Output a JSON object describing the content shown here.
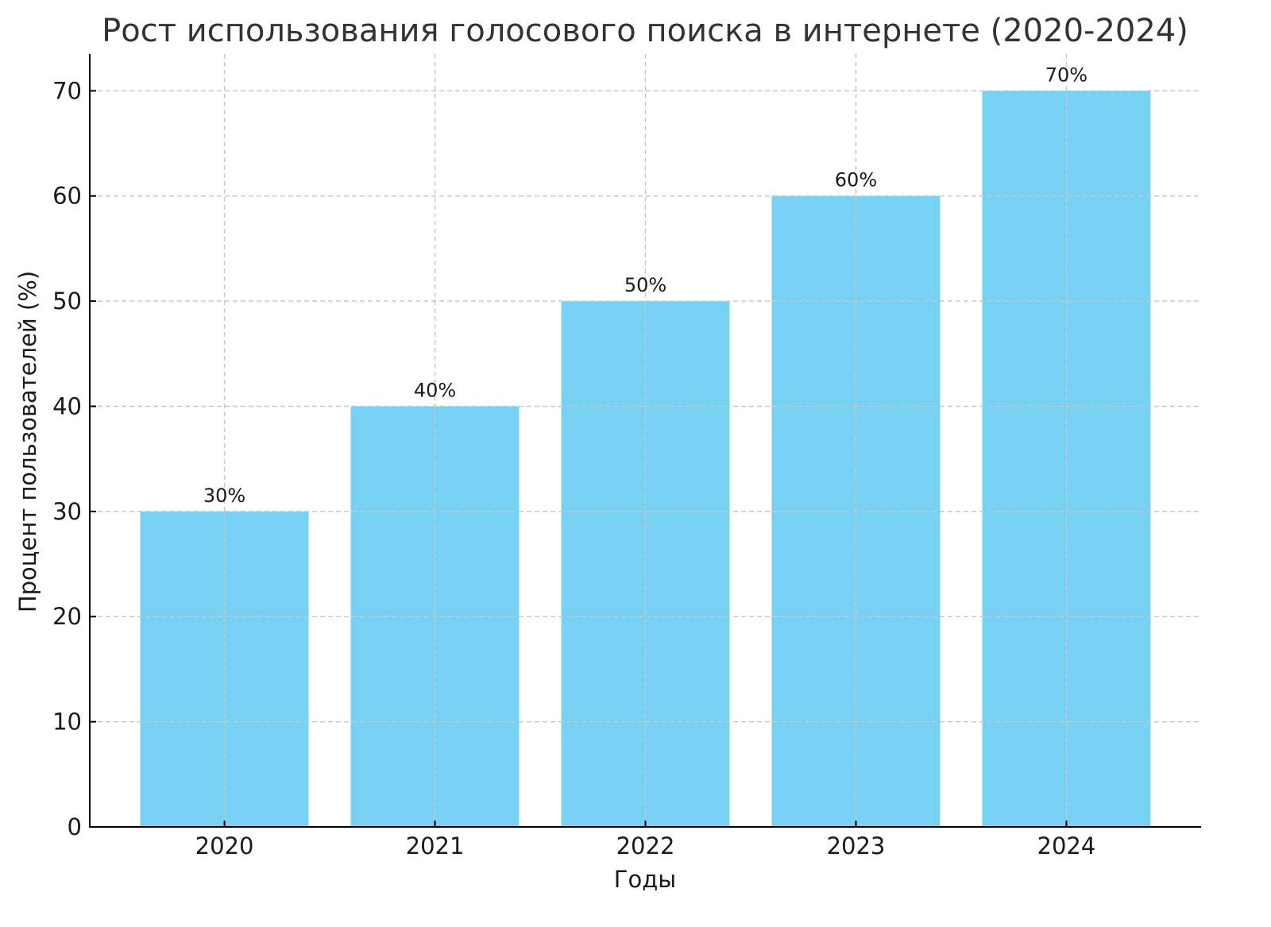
{
  "chart_data": {
    "type": "bar",
    "title": "Рост использования голосового поиска в интернете (2020-2024)",
    "xlabel": "Годы",
    "ylabel": "Процент пользователей (%)",
    "categories": [
      "2020",
      "2021",
      "2022",
      "2023",
      "2024"
    ],
    "values": [
      30,
      40,
      50,
      60,
      70
    ],
    "data_labels": [
      "30%",
      "40%",
      "50%",
      "60%",
      "70%"
    ],
    "ylim": [
      0,
      73.5
    ],
    "yticks": [
      0,
      10,
      20,
      30,
      40,
      50,
      60,
      70
    ],
    "grid": true,
    "bar_color": "#76d1f3"
  }
}
